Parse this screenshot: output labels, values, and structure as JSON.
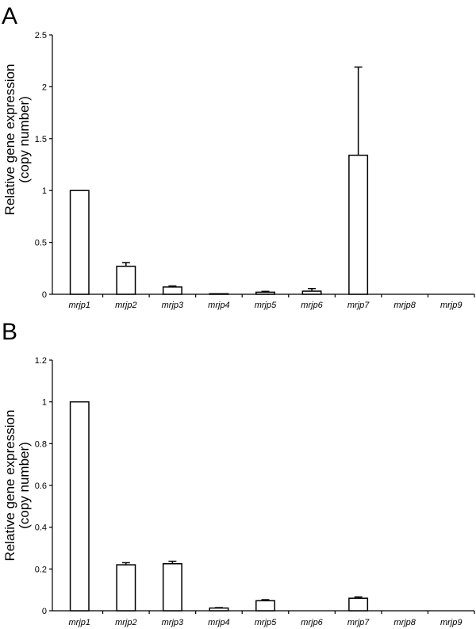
{
  "chart_data": [
    {
      "panel": "A",
      "type": "bar",
      "title": "",
      "xlabel": "",
      "ylabel_lines": [
        "Relative gene expression",
        "(copy number)"
      ],
      "categories": [
        "mrjp1",
        "mrjp2",
        "mrjp3",
        "mrjp4",
        "mrjp5",
        "mrjp6",
        "mrjp7",
        "mrjp8",
        "mrjp9"
      ],
      "values": [
        1.0,
        0.27,
        0.07,
        0.005,
        0.02,
        0.03,
        1.34,
        0.0,
        0.0
      ],
      "errors": [
        0,
        0.035,
        0.01,
        0,
        0.008,
        0.025,
        0.85,
        0,
        0
      ],
      "ylim": [
        0,
        2.5
      ],
      "yticks": [
        "0",
        "0.5",
        "1",
        "1.5",
        "2",
        "2.5"
      ],
      "ytick_values": [
        0,
        0.5,
        1,
        1.5,
        2,
        2.5
      ],
      "grid": false,
      "legend": "none"
    },
    {
      "panel": "B",
      "type": "bar",
      "title": "",
      "xlabel": "",
      "ylabel_lines": [
        "Relative gene expression",
        "(copy number)"
      ],
      "categories": [
        "mrjp1",
        "mrjp2",
        "mrjp3",
        "mrjp4",
        "mrjp5",
        "mrjp6",
        "mrjp7",
        "mrjp8",
        "mrjp9"
      ],
      "values": [
        1.0,
        0.22,
        0.225,
        0.013,
        0.048,
        0.0,
        0.06,
        0.0,
        0.0
      ],
      "errors": [
        0,
        0.01,
        0.012,
        0.002,
        0.005,
        0,
        0.006,
        0,
        0
      ],
      "ylim": [
        0,
        1.2
      ],
      "yticks": [
        "0",
        "0.2",
        "0.4",
        "0.6",
        "0.8",
        "1",
        "1.2"
      ],
      "ytick_values": [
        0,
        0.2,
        0.4,
        0.6,
        0.8,
        1,
        1.2
      ],
      "grid": false,
      "legend": "none"
    }
  ]
}
